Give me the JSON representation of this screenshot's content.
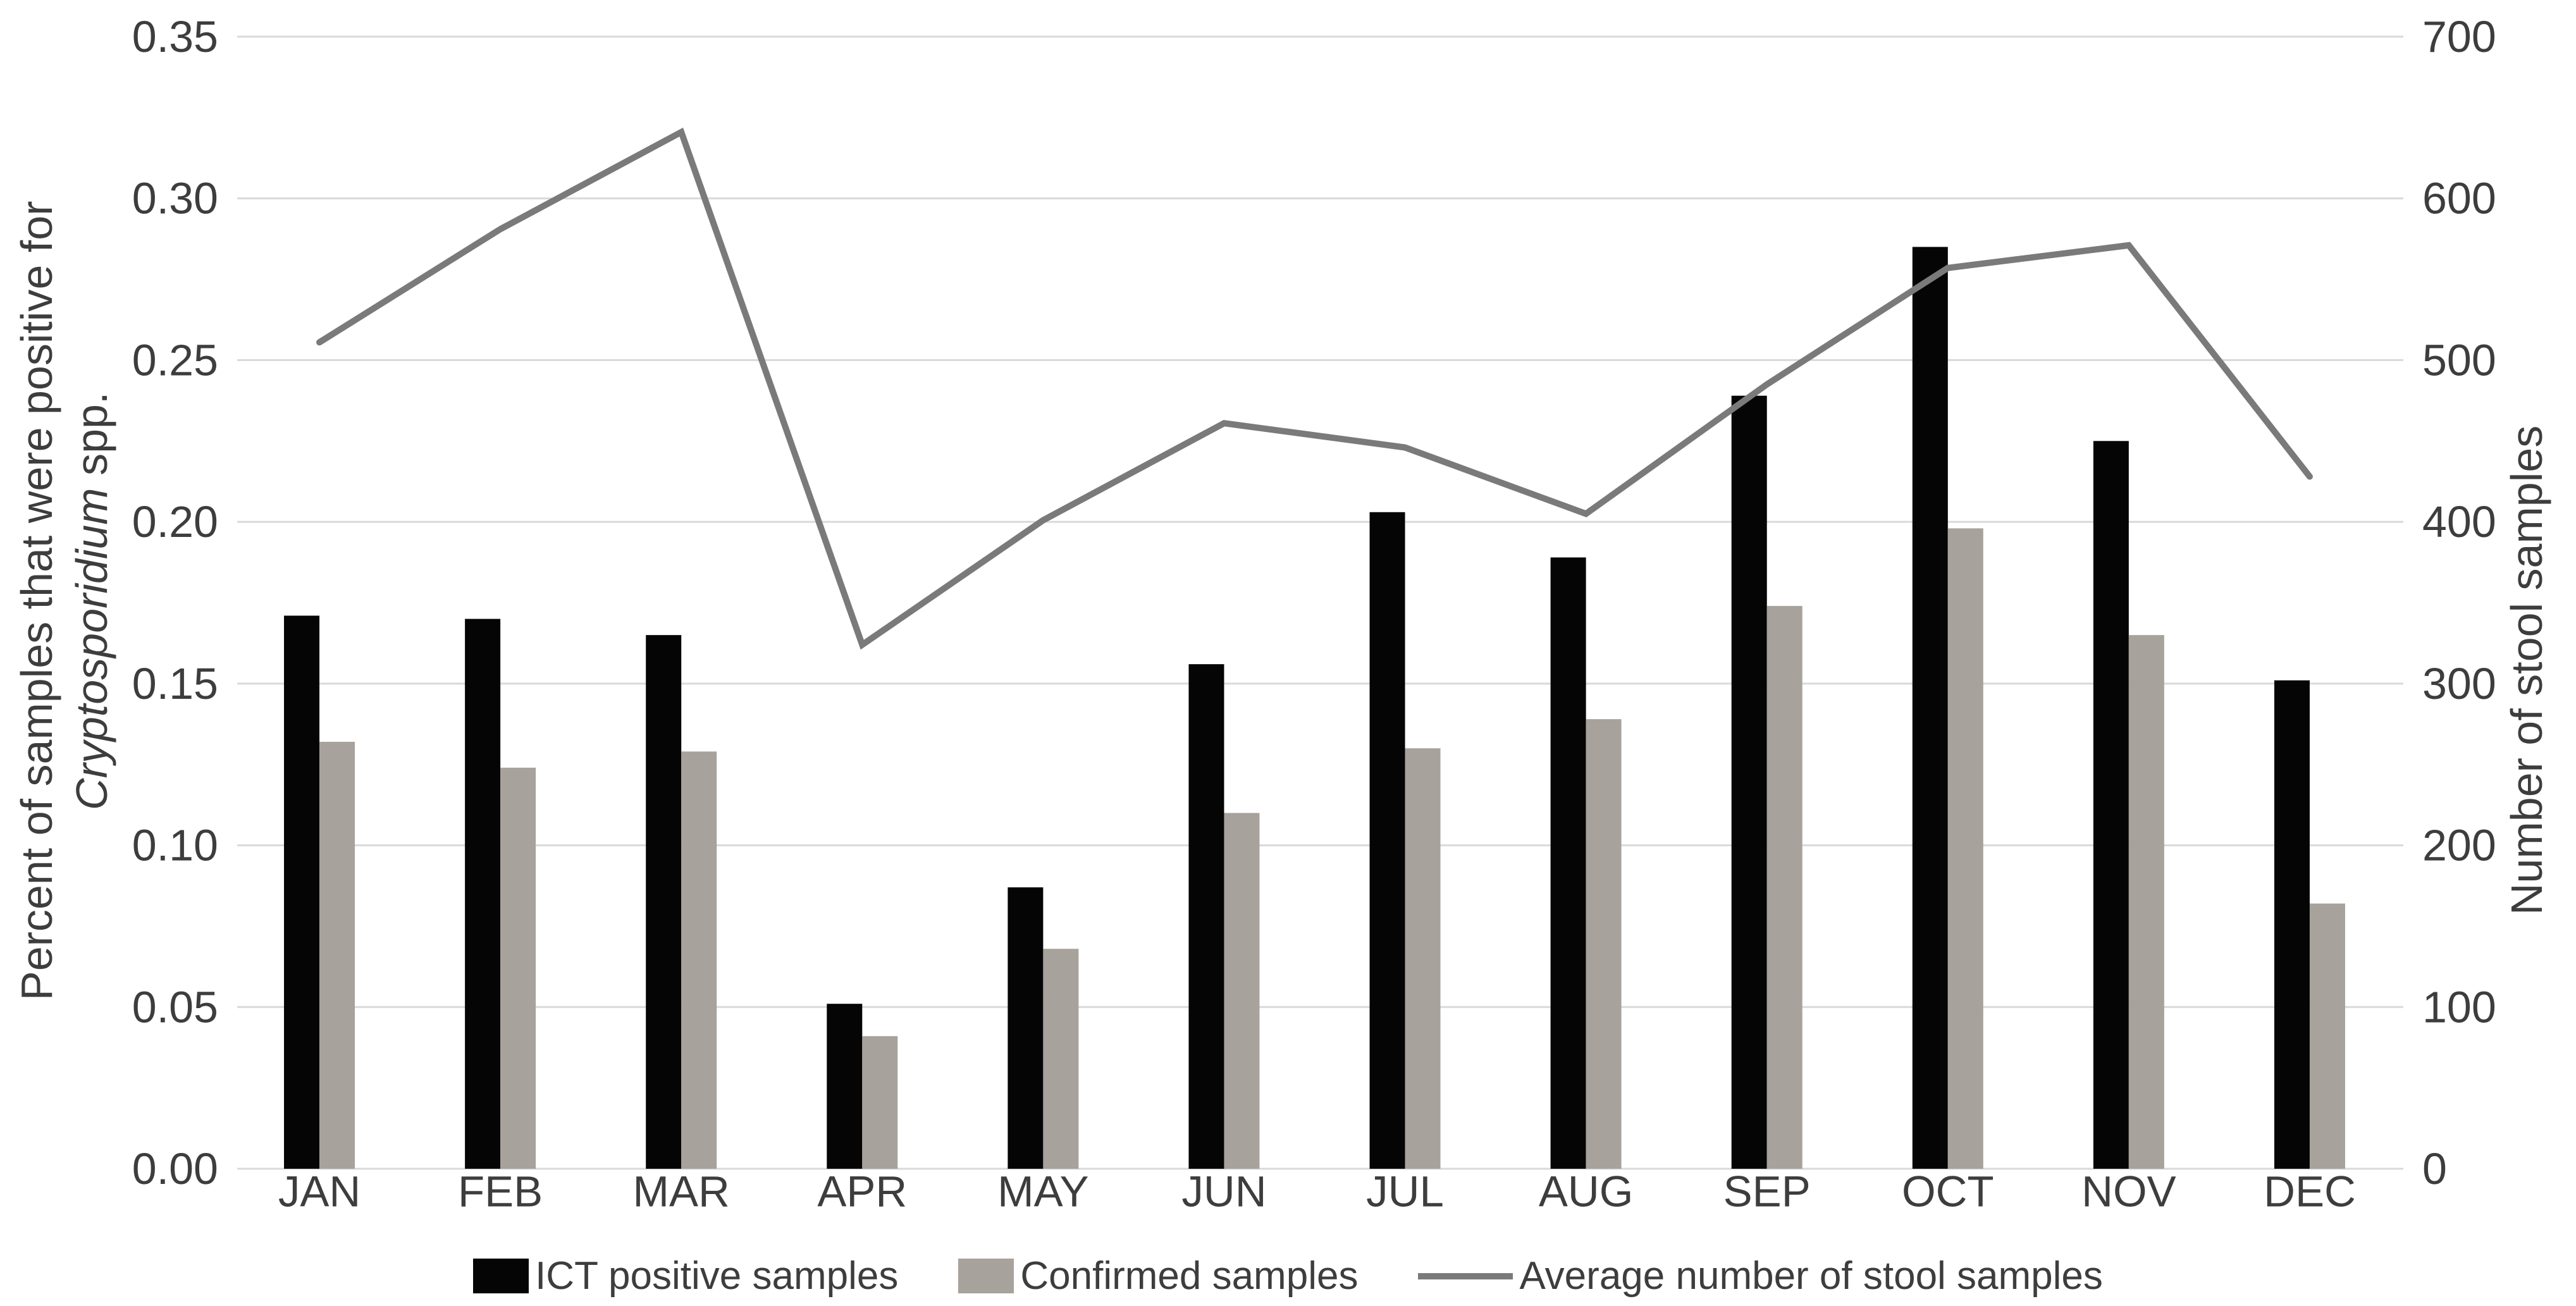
{
  "chart_data": {
    "type": "bar",
    "subtype": "combo-bar-line",
    "title": "",
    "categories": [
      "JAN",
      "FEB",
      "MAR",
      "APR",
      "MAY",
      "JUN",
      "JUL",
      "AUG",
      "SEP",
      "OCT",
      "NOV",
      "DEC"
    ],
    "series": [
      {
        "name": "ICT positive samples",
        "type": "bar",
        "axis": "left",
        "color": "#050505",
        "values": [
          0.171,
          0.17,
          0.165,
          0.051,
          0.087,
          0.156,
          0.203,
          0.189,
          0.239,
          0.285,
          0.225,
          0.151
        ]
      },
      {
        "name": "Confirmed samples",
        "type": "bar",
        "axis": "left",
        "color": "#a8a29c",
        "values": [
          0.132,
          0.124,
          0.129,
          0.041,
          0.068,
          0.11,
          0.13,
          0.139,
          0.174,
          0.198,
          0.165,
          0.082
        ]
      },
      {
        "name": "Average number of stool samples",
        "type": "line",
        "axis": "right",
        "color": "#7a7a7a",
        "values": [
          511,
          581,
          641,
          324,
          401,
          461,
          446,
          405,
          485,
          557,
          571,
          428
        ]
      }
    ],
    "left_axis": {
      "label_line1": "Percent of samples that were positive for",
      "label_italic": "Cryptosporidium",
      "label_suffix": " spp.",
      "min": 0,
      "max": 0.35,
      "step": 0.05,
      "ticks": [
        "0.00",
        "0.05",
        "0.10",
        "0.15",
        "0.20",
        "0.25",
        "0.30",
        "0.35"
      ]
    },
    "right_axis": {
      "label": "Number of stool samples",
      "min": 0,
      "max": 700,
      "step": 100,
      "ticks": [
        "0",
        "100",
        "200",
        "300",
        "400",
        "500",
        "600",
        "700"
      ]
    },
    "grid": true,
    "legend_position": "bottom",
    "background": "#ffffff",
    "gridline_color": "#d9d9d9",
    "text_color": "#3d3d3d"
  }
}
